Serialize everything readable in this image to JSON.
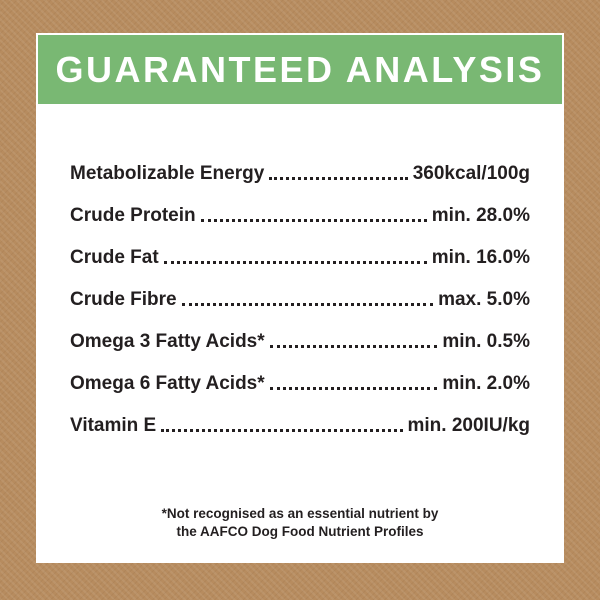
{
  "colors": {
    "background_brown": "#b78c5f",
    "header_green": "#79b873",
    "card_white": "#ffffff",
    "text_dark": "#231f20",
    "header_text": "#ffffff"
  },
  "header": {
    "title": "GUARANTEED ANALYSIS"
  },
  "analysis": {
    "rows": [
      {
        "label": "Metabolizable Energy",
        "value": "360kcal/100g"
      },
      {
        "label": "Crude Protein",
        "value": "min. 28.0%"
      },
      {
        "label": "Crude Fat",
        "value": "min. 16.0%"
      },
      {
        "label": "Crude Fibre",
        "value": "max. 5.0%"
      },
      {
        "label": "Omega 3 Fatty Acids*",
        "value": "min. 0.5%"
      },
      {
        "label": "Omega 6 Fatty Acids*",
        "value": "min. 2.0%"
      },
      {
        "label": "Vitamin E",
        "value": "min. 200IU/kg"
      }
    ]
  },
  "footnote": {
    "line1": "*Not recognised as an essential nutrient by",
    "line2": "the AAFCO Dog Food Nutrient Profiles"
  }
}
